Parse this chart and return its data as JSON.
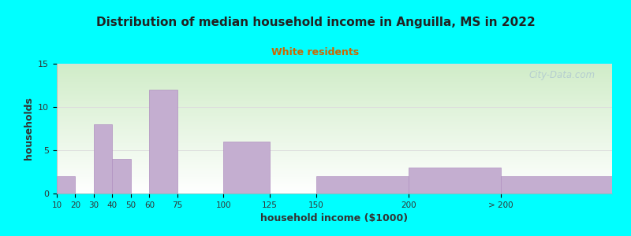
{
  "title": "Distribution of median household income in Anguilla, MS in 2022",
  "subtitle": "White residents",
  "xlabel": "household income ($1000)",
  "ylabel": "households",
  "background_outer": "#00FFFF",
  "bar_color": "#c4aed0",
  "bar_edge_color": "#b090c0",
  "title_color": "#222222",
  "subtitle_color": "#cc6600",
  "axis_label_color": "#333333",
  "tick_label_color": "#333333",
  "grid_color": "#dddddd",
  "tick_positions": [
    10,
    20,
    30,
    40,
    50,
    60,
    75,
    100,
    125,
    150,
    200,
    250,
    310
  ],
  "tick_labels": [
    "10",
    "20",
    "30",
    "40",
    "50",
    "60",
    "75",
    "100",
    "125",
    "150",
    "200",
    "> 200"
  ],
  "values": [
    2,
    0,
    8,
    4,
    0,
    12,
    0,
    6,
    0,
    2,
    3,
    2
  ],
  "ylim": [
    0,
    15
  ],
  "yticks": [
    0,
    5,
    10,
    15
  ],
  "grad_top": "#d0ecc8",
  "grad_bottom": "#ffffff",
  "watermark": "City-Data.com"
}
